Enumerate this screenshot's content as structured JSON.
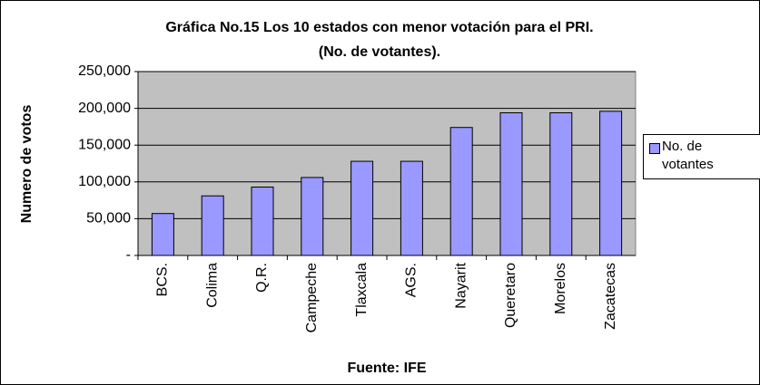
{
  "chart_data": {
    "type": "bar",
    "title": "Gráfica No.15 Los 10 estados con menor votación para el PRI.",
    "subtitle": "(No. de votantes).",
    "ylabel": "Numero de votos",
    "xlabel": "Fuente: IFE",
    "categories": [
      "BCS.",
      "Colima",
      "Q.R.",
      "Campeche",
      "Tlaxcala",
      "AGS.",
      "Nayarit",
      "Queretaro",
      "Morelos",
      "Zacatecas"
    ],
    "series": [
      {
        "name": "No. de votantes",
        "color": "#9999ff",
        "values": [
          57000,
          81000,
          93000,
          106000,
          128000,
          128000,
          174000,
          194000,
          194000,
          196000
        ]
      }
    ],
    "ylim": [
      0,
      250000
    ],
    "yticks": [
      {
        "value": 0,
        "label": "-"
      },
      {
        "value": 50000,
        "label": "50,000"
      },
      {
        "value": 100000,
        "label": "100,000"
      },
      {
        "value": 150000,
        "label": "150,000"
      },
      {
        "value": 200000,
        "label": "200,000"
      },
      {
        "value": 250000,
        "label": "250,000"
      }
    ],
    "grid": true,
    "legend": "right"
  }
}
